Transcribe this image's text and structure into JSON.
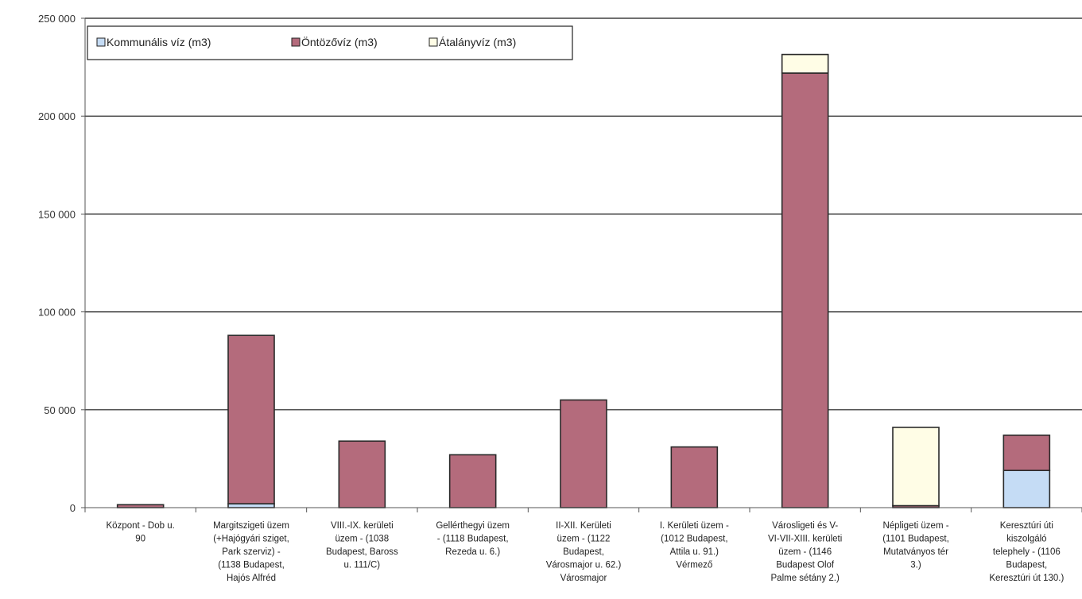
{
  "chart_data": {
    "type": "bar",
    "stacked": true,
    "categories": [
      [
        "Központ - Dob u.",
        "90"
      ],
      [
        "Margitszigeti üzem",
        "(+Hajógyári sziget,",
        "Park szerviz) -",
        "(1138 Budapest,",
        "Hajós Alfréd"
      ],
      [
        "VIII.-IX. kerületi",
        "üzem - (1038",
        "Budapest, Baross",
        "u. 111/C)"
      ],
      [
        "Gellérthegyi üzem",
        "- (1118 Budapest,",
        "Rezeda u. 6.)"
      ],
      [
        "II-XII. Kerületi",
        "üzem - (1122",
        "Budapest,",
        "Városmajor u. 62.)",
        "Városmajor"
      ],
      [
        "I. Kerületi üzem -",
        "(1012 Budapest,",
        "Attila u. 91.)",
        "Vérmező"
      ],
      [
        "Városligeti és V-",
        "VI-VII-XIII. kerületi",
        "üzem - (1146",
        "Budapest Olof",
        "Palme sétány 2.)"
      ],
      [
        "Népligeti üzem -",
        "(1101 Budapest,",
        "Mutatványos tér",
        "3.)"
      ],
      [
        "Keresztúri úti",
        "kiszolgáló",
        "telephely - (1106",
        "Budapest,",
        "Keresztúri út 130.)"
      ]
    ],
    "series": [
      {
        "name": "Kommunális víz (m3)",
        "color": "#c5dcf5",
        "values": [
          0,
          2000,
          0,
          0,
          0,
          0,
          0,
          0,
          19000
        ]
      },
      {
        "name": "Öntözővíz (m3)",
        "color": "#b46b7c",
        "values": [
          1500,
          86000,
          34000,
          27000,
          55000,
          31000,
          222000,
          1000,
          18000
        ]
      },
      {
        "name": "Átalányvíz (m3)",
        "color": "#fffde6",
        "values": [
          0,
          0,
          0,
          0,
          0,
          0,
          9500,
          40000,
          0
        ]
      }
    ],
    "ylim": [
      0,
      250000
    ],
    "yticks": [
      0,
      50000,
      100000,
      150000,
      200000,
      250000
    ],
    "ytick_labels": [
      "0",
      "50 000",
      "100 000",
      "150 000",
      "200 000",
      "250 000"
    ],
    "grid": true,
    "legend_position": "top-left"
  }
}
